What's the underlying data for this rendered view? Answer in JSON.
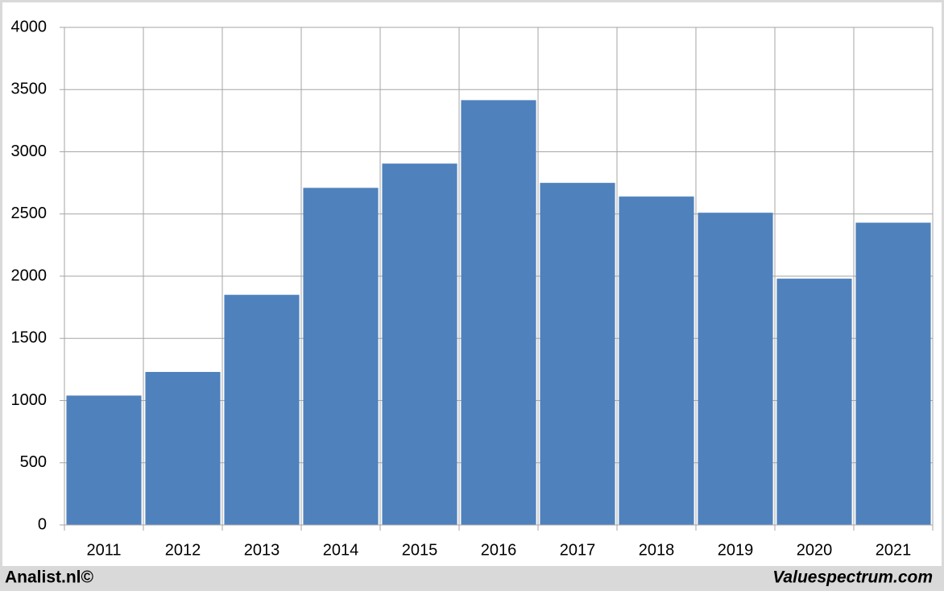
{
  "chart_data": {
    "type": "bar",
    "categories": [
      "2011",
      "2012",
      "2013",
      "2014",
      "2015",
      "2016",
      "2017",
      "2018",
      "2019",
      "2020",
      "2021"
    ],
    "values": [
      1040,
      1230,
      1850,
      2710,
      2905,
      3415,
      2750,
      2640,
      2510,
      1980,
      2430
    ],
    "color": "#4f81bd",
    "ylim": [
      0,
      4000
    ],
    "yticks": [
      0,
      500,
      1000,
      1500,
      2000,
      2500,
      3000,
      3500,
      4000
    ],
    "grid": true
  },
  "footer": {
    "left": "Analist.nl©",
    "right": "Valuespectrum.com"
  }
}
